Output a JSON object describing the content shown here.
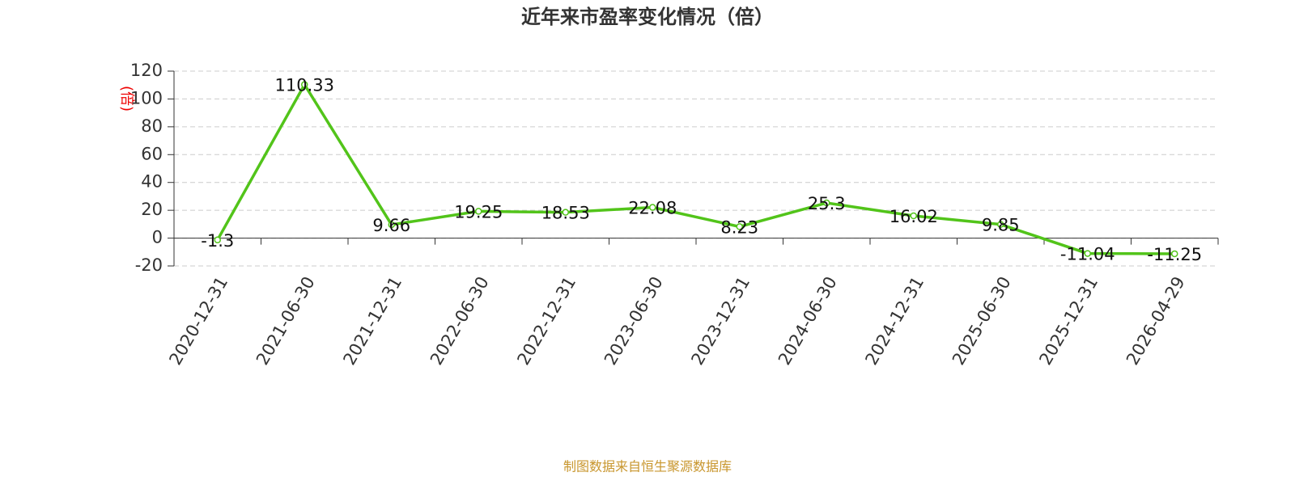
{
  "chart_data": {
    "type": "line",
    "title": "近年来市盈率变化情况（倍）",
    "y_label": "(倍)",
    "source": "制图数据来自恒生聚源数据库",
    "categories": [
      "2020-12-31",
      "2021-06-30",
      "2021-12-31",
      "2022-06-30",
      "2022-12-31",
      "2023-06-30",
      "2023-12-31",
      "2024-06-30",
      "2024-12-31",
      "2025-06-30",
      "2025-12-31",
      "2026-04-29"
    ],
    "values": [
      -1.3,
      110.33,
      9.66,
      19.25,
      18.53,
      22.08,
      8.23,
      25.3,
      16.02,
      9.85,
      -11.04,
      -11.25
    ],
    "color": "#52c41a",
    "ylim": [
      -20,
      120
    ],
    "yticks": [
      -20,
      0,
      20,
      40,
      60,
      80,
      100,
      120
    ],
    "grid": true
  }
}
